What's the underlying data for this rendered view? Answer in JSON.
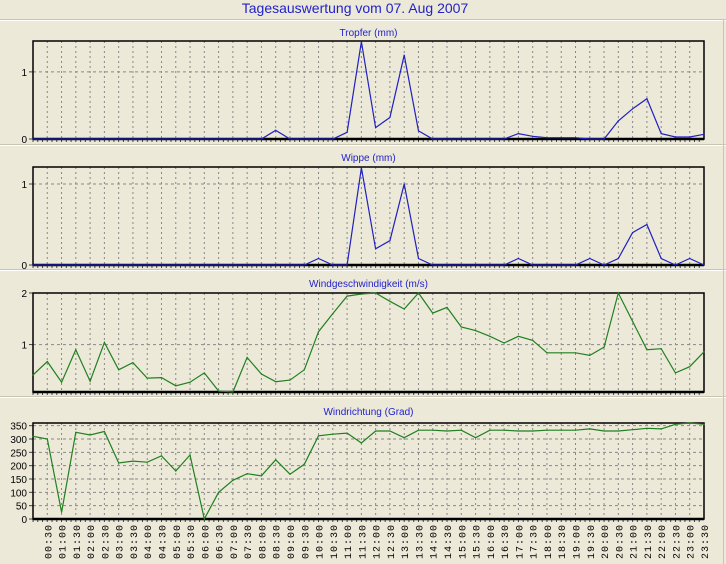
{
  "title": "Tagesauswertung vom 07. Aug 2007",
  "colors": {
    "rain": "#2020C0",
    "wind": "#208020",
    "title": "#2222CC"
  },
  "x_labels": [
    "00:30",
    "01:00",
    "01:30",
    "02:00",
    "02:30",
    "03:00",
    "03:30",
    "04:00",
    "04:30",
    "05:00",
    "05:30",
    "06:00",
    "06:30",
    "07:00",
    "07:30",
    "08:00",
    "08:30",
    "09:00",
    "09:30",
    "10:00",
    "10:30",
    "11:00",
    "11:30",
    "12:00",
    "12:30",
    "13:00",
    "13:30",
    "14:00",
    "14:30",
    "15:00",
    "15:30",
    "16:00",
    "16:30",
    "17:00",
    "17:30",
    "18:00",
    "18:30",
    "19:00",
    "19:30",
    "20:00",
    "20:30",
    "21:00",
    "21:30",
    "22:00",
    "22:30",
    "23:00",
    "23:30"
  ],
  "chart_data": [
    {
      "type": "line",
      "title": "Tropfer (mm)",
      "ylim": [
        0,
        1.46
      ],
      "yticks": [
        0,
        1
      ],
      "color": "#2020C0",
      "x": "00:00–23:30 every 30 min",
      "values": [
        0,
        0,
        0,
        0,
        0,
        0,
        0,
        0,
        0,
        0,
        0,
        0,
        0,
        0,
        0,
        0,
        0,
        0.13,
        0,
        0,
        0,
        0,
        0.1,
        1.45,
        0.17,
        0.32,
        1.25,
        0.12,
        0,
        0,
        0,
        0,
        0,
        0,
        0.08,
        0.04,
        0.02,
        0.02,
        0.02,
        0,
        0,
        0.27,
        0.45,
        0.6,
        0.08,
        0.03,
        0.03,
        0.07
      ]
    },
    {
      "type": "line",
      "title": "Wippe (mm)",
      "ylim": [
        0,
        1.21
      ],
      "yticks": [
        0,
        1
      ],
      "color": "#2020C0",
      "x": "00:00–23:30 every 30 min",
      "values": [
        0,
        0,
        0,
        0,
        0,
        0,
        0,
        0,
        0,
        0,
        0,
        0,
        0,
        0,
        0,
        0,
        0,
        0,
        0,
        0,
        0.08,
        0,
        0,
        1.2,
        0.2,
        0.3,
        1.0,
        0.08,
        0,
        0,
        0,
        0,
        0,
        0,
        0.08,
        0,
        0,
        0,
        0,
        0.08,
        0,
        0.08,
        0.4,
        0.5,
        0.08,
        0,
        0.08,
        0
      ]
    },
    {
      "type": "line",
      "title": "Windgeschwindigkeit (m/s)",
      "ylim": [
        0.08,
        2.0
      ],
      "yticks": [
        1,
        2
      ],
      "color": "#208020",
      "x": "00:00–23:30 every 30 min",
      "values": [
        0.41,
        0.67,
        0.27,
        0.9,
        0.29,
        1.04,
        0.51,
        0.65,
        0.35,
        0.36,
        0.2,
        0.27,
        0.45,
        0.1,
        0.08,
        0.75,
        0.43,
        0.28,
        0.31,
        0.51,
        1.25,
        1.6,
        1.94,
        1.98,
        2.0,
        1.84,
        1.69,
        2.0,
        1.61,
        1.72,
        1.34,
        1.27,
        1.16,
        1.03,
        1.16,
        1.08,
        0.84,
        0.84,
        0.84,
        0.79,
        0.95,
        2.0,
        1.45,
        0.9,
        0.92,
        0.45,
        0.57,
        0.86
      ]
    },
    {
      "type": "line",
      "title": "Windrichtung (Grad)",
      "ylim": [
        0,
        360
      ],
      "yticks": [
        0,
        50,
        100,
        150,
        200,
        250,
        300,
        350
      ],
      "color": "#208020",
      "x": "00:00–23:30 every 30 min",
      "values": [
        310,
        300,
        25,
        325,
        315,
        328,
        210,
        217,
        213,
        237,
        180,
        240,
        0,
        100,
        145,
        170,
        162,
        222,
        168,
        205,
        312,
        318,
        322,
        285,
        330,
        330,
        305,
        333,
        333,
        330,
        333,
        305,
        333,
        333,
        330,
        330,
        333,
        333,
        333,
        338,
        330,
        330,
        335,
        340,
        338,
        355,
        360,
        355
      ]
    }
  ]
}
